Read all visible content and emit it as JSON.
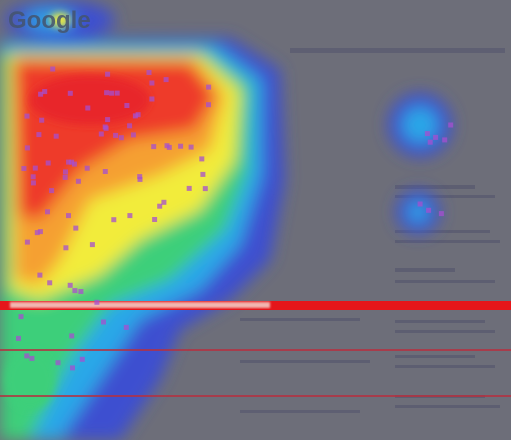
{
  "header": {
    "logo": "Google"
  }
}
